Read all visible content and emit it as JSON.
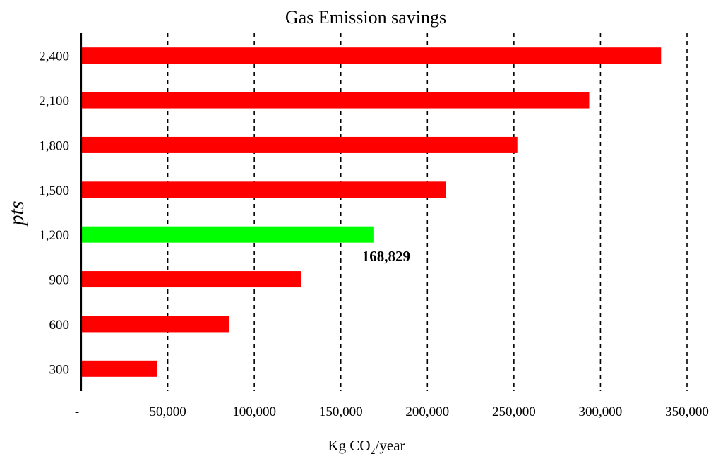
{
  "chart_data": {
    "type": "bar",
    "orientation": "horizontal",
    "title": "Gas Emission savings",
    "xlabel_prefix": "Kg CO",
    "xlabel_sub": "2",
    "xlabel_suffix": "/year",
    "ylabel": "pts",
    "categories": [
      "300",
      "600",
      "900",
      "1,200",
      "1,500",
      "1,800",
      "2,100",
      "2,400"
    ],
    "values": [
      44000,
      85500,
      127000,
      168829,
      210500,
      252000,
      293500,
      335000
    ],
    "highlight_index": 3,
    "highlight_label": "168,829",
    "x_ticks": [
      "-",
      "50,000",
      "100,000",
      "150,000",
      "200,000",
      "250,000",
      "300,000",
      "350,000"
    ],
    "xlim": [
      0,
      350000
    ],
    "grid": "vertical dashed",
    "colors": {
      "bar": "#ff0000",
      "highlight": "#00ff00",
      "grid": "#000000"
    }
  }
}
